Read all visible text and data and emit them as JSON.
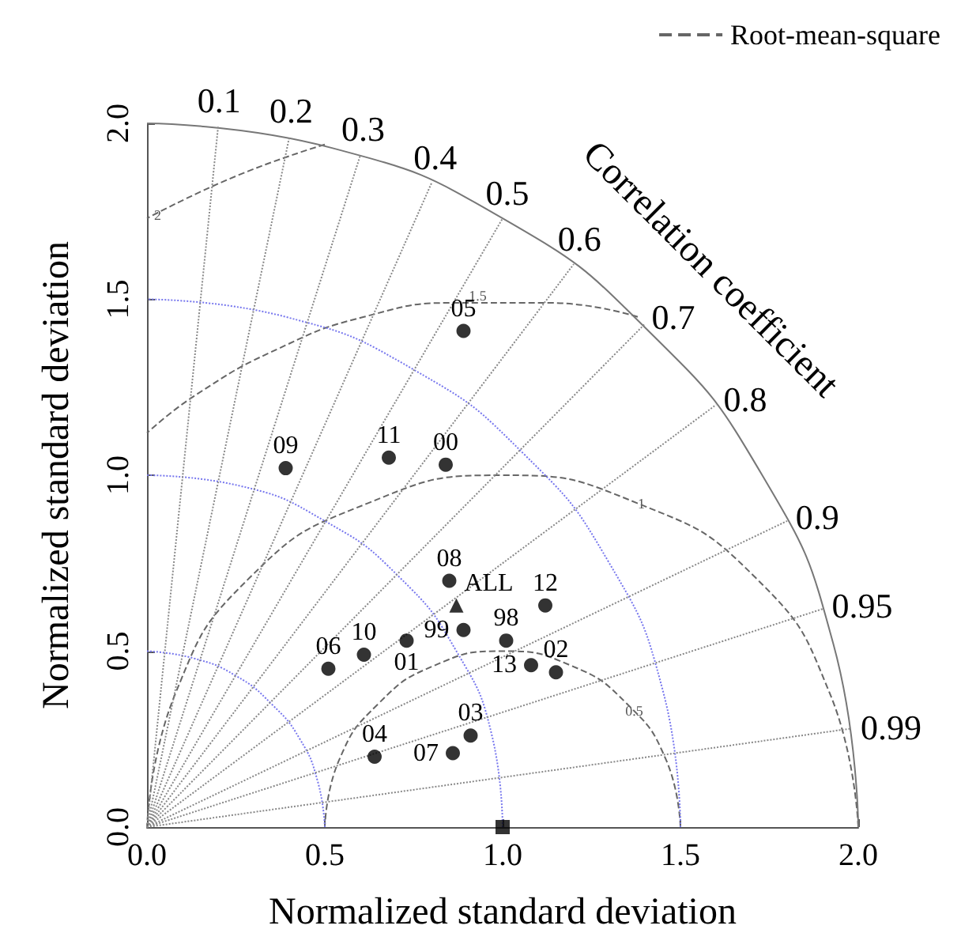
{
  "chart_data": {
    "type": "scatter",
    "xlabel": "Normalized standard deviation",
    "ylabel": "Normalized standard deviation",
    "xlim": [
      0,
      2
    ],
    "ylim": [
      0,
      2
    ],
    "xticks": [
      {
        "value": 0,
        "label": "0.0"
      },
      {
        "value": 0.5,
        "label": "0.5"
      },
      {
        "value": 1,
        "label": "1.0"
      },
      {
        "value": 1.5,
        "label": "1.5"
      },
      {
        "value": 2,
        "label": "2.0"
      }
    ],
    "yticks": [
      {
        "value": 0,
        "label": "0.0"
      },
      {
        "value": 0.5,
        "label": "0.5"
      },
      {
        "value": 1,
        "label": "1.0"
      },
      {
        "value": 1.5,
        "label": "1.5"
      },
      {
        "value": 2,
        "label": "2.0"
      }
    ],
    "legend": "top right",
    "series": [
      {
        "name": "Root-mean-square",
        "type": "line",
        "color": "#666666",
        "line_style": "dashed",
        "marker": "none",
        "x": [
          1.5,
          1.46,
          1.35,
          1.19,
          1,
          0.81,
          0.65,
          0.54,
          0.5,
          null,
          2,
          1.92,
          1.71,
          1.38,
          1,
          0.62,
          0.29,
          0.08,
          0,
          null,
          1.38,
          1.13,
          0.87,
          0.61,
          0.37,
          0.14,
          0,
          null,
          0.5,
          0.25,
          0
        ],
        "values": [
          0,
          0.19,
          0.35,
          0.46,
          0.5,
          0.46,
          0.35,
          0.19,
          0,
          null,
          0,
          0.38,
          0.71,
          0.92,
          1,
          0.92,
          0.71,
          0.38,
          0,
          null,
          1.45,
          1.49,
          1.49,
          1.45,
          1.36,
          1.23,
          1.12,
          null,
          1.94,
          1.85,
          1.73
        ]
      },
      {
        "type": "line",
        "color": "#7777ee",
        "line_style": "dotted",
        "marker": "none",
        "x": [
          0.5,
          0.48,
          0.43,
          0.35,
          0.25,
          0.13,
          0,
          null,
          1,
          0.97,
          0.87,
          0.71,
          0.5,
          0.26,
          0,
          null,
          1.5,
          1.45,
          1.3,
          1.06,
          0.75,
          0.39,
          0
        ],
        "values": [
          0,
          0.13,
          0.25,
          0.35,
          0.43,
          0.48,
          0.5,
          null,
          0,
          0.26,
          0.5,
          0.71,
          0.87,
          0.97,
          1,
          null,
          0,
          0.39,
          0.75,
          1.06,
          1.3,
          1.45,
          1.5
        ]
      },
      {
        "type": "line",
        "color": "#777777",
        "line_style": "solid",
        "marker": "none",
        "x": [
          2,
          1.93,
          1.73,
          1.41,
          1,
          0.52,
          0
        ],
        "values": [
          0,
          0.52,
          1,
          1.41,
          1.73,
          1.93,
          2
        ]
      },
      {
        "type": "line",
        "color": "#888888",
        "line_style": "dotted",
        "marker": "none",
        "x": [
          0,
          0.2,
          null,
          0,
          0.4,
          null,
          0,
          0.6,
          null,
          0,
          0.8,
          null,
          0,
          1,
          null,
          0,
          1.2,
          null,
          0,
          1.4,
          null,
          0,
          1.6,
          null,
          0,
          1.8,
          null,
          0,
          1.9,
          null,
          0,
          1.98
        ],
        "values": [
          0,
          1.99,
          null,
          0,
          1.96,
          null,
          0,
          1.91,
          null,
          0,
          1.83,
          null,
          0,
          1.73,
          null,
          0,
          1.6,
          null,
          0,
          1.43,
          null,
          0,
          1.2,
          null,
          0,
          0.87,
          null,
          0,
          0.62,
          null,
          0,
          0.28
        ]
      },
      {
        "color": "#000000",
        "marker": "circle",
        "x": [
          0.85,
          0.89,
          1.01,
          1.12,
          0.73,
          0.61,
          0.51,
          1.08,
          1.15,
          0.91,
          0.86,
          0.64,
          0.89,
          0.39,
          0.68,
          0.84
        ],
        "values": [
          0.7,
          0.56,
          0.53,
          0.63,
          0.53,
          0.49,
          0.45,
          0.46,
          0.44,
          0.26,
          0.21,
          0.2,
          1.41,
          1.02,
          1.05,
          1.03
        ]
      },
      {
        "color": "#000000",
        "marker": "triangle",
        "x": [
          0.87
        ],
        "values": [
          0.63
        ]
      },
      {
        "color": "#000000",
        "marker": "square",
        "x": [
          1
        ],
        "values": [
          0
        ]
      }
    ],
    "annotations": [
      {
        "text": "0.1",
        "x": 0.2,
        "y": 1.99
      },
      {
        "text": "0.2",
        "x": 0.4,
        "y": 1.96
      },
      {
        "text": "0.3",
        "x": 0.6,
        "y": 1.91
      },
      {
        "text": "0.4",
        "x": 0.8,
        "y": 1.83
      },
      {
        "text": "0.5",
        "x": 1,
        "y": 1.73
      },
      {
        "text": "0.6",
        "x": 1.2,
        "y": 1.6
      },
      {
        "text": "0.7",
        "x": 1.4,
        "y": 1.43
      },
      {
        "text": "0.8",
        "x": 1.6,
        "y": 1.2
      },
      {
        "text": "0.9",
        "x": 1.8,
        "y": 0.87
      },
      {
        "text": "0.95",
        "x": 1.9,
        "y": 0.62
      },
      {
        "text": "0.99",
        "x": 1.98,
        "y": 0.28
      },
      "Correlation coefficient",
      {
        "text": "2",
        "x": 0.03,
        "y": 1.74
      },
      {
        "text": "1.5",
        "x": 0.93,
        "y": 1.51
      },
      {
        "text": "1",
        "x": 1.39,
        "y": 0.92
      },
      {
        "text": "0.5",
        "x": 1.37,
        "y": 0.33
      },
      {
        "text": "08",
        "x": 0.85,
        "y": 0.7
      },
      {
        "text": "99",
        "x": 0.89,
        "y": 0.56
      },
      {
        "text": "98",
        "x": 1.01,
        "y": 0.53
      },
      {
        "text": "12",
        "x": 1.12,
        "y": 0.63
      },
      {
        "text": "01",
        "x": 0.73,
        "y": 0.53
      },
      {
        "text": "10",
        "x": 0.61,
        "y": 0.49
      },
      {
        "text": "06",
        "x": 0.51,
        "y": 0.45
      },
      {
        "text": "13",
        "x": 1.08,
        "y": 0.46
      },
      {
        "text": "02",
        "x": 1.15,
        "y": 0.44
      },
      {
        "text": "03",
        "x": 0.91,
        "y": 0.26
      },
      {
        "text": "07",
        "x": 0.86,
        "y": 0.21
      },
      {
        "text": "04",
        "x": 0.64,
        "y": 0.2
      },
      {
        "text": "05",
        "x": 0.89,
        "y": 1.41
      },
      {
        "text": "09",
        "x": 0.39,
        "y": 1.02
      },
      {
        "text": "11",
        "x": 0.68,
        "y": 1.05
      },
      {
        "text": "00",
        "x": 0.84,
        "y": 1.03
      },
      {
        "text": "ALL",
        "x": 0.87,
        "y": 0.63
      }
    ]
  }
}
